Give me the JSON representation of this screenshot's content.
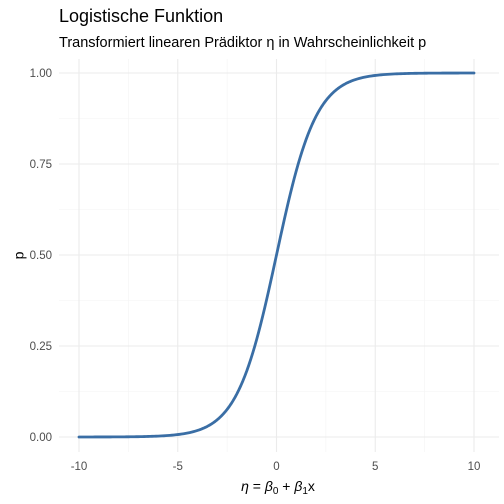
{
  "chart_data": {
    "type": "line",
    "title": "Logistische Funktion",
    "subtitle": "Transformiert linearen Prädiktor η in Wahrscheinlichkeit p",
    "xlabel": "η = β0 + β1x",
    "xlabel_parts": {
      "eta": "η",
      "eq": " = ",
      "beta": "β",
      "sub0": "0",
      "plus": " + ",
      "sub1": "1",
      "x": "x"
    },
    "ylabel": "p",
    "xlim": [
      -10,
      10
    ],
    "ylim": [
      0,
      1
    ],
    "x_ticks": [
      -10,
      -5,
      0,
      5,
      10
    ],
    "x_tick_labels": [
      "-10",
      "-5",
      "0",
      "5",
      "10"
    ],
    "y_ticks": [
      0,
      0.25,
      0.5,
      0.75,
      1.0
    ],
    "y_tick_labels": [
      "0.00",
      "0.25",
      "0.50",
      "0.75",
      "1.00"
    ],
    "grid": true,
    "function": "p = 1 / (1 + exp(-η))",
    "series": [
      {
        "color": "#3a6ea5",
        "x": [
          -10,
          -9,
          -8,
          -7,
          -6,
          -5,
          -4,
          -3,
          -2,
          -1.5,
          -1,
          -0.5,
          0,
          0.5,
          1,
          1.5,
          2,
          3,
          4,
          5,
          6,
          7,
          8,
          9,
          10
        ],
        "y": [
          5e-05,
          0.00012,
          0.00034,
          0.00091,
          0.00247,
          0.0067,
          0.018,
          0.0474,
          0.1192,
          0.1824,
          0.2689,
          0.3775,
          0.5,
          0.6225,
          0.7311,
          0.8176,
          0.8808,
          0.9526,
          0.982,
          0.9933,
          0.9975,
          0.9991,
          0.9997,
          0.9999,
          1.0
        ]
      }
    ]
  }
}
